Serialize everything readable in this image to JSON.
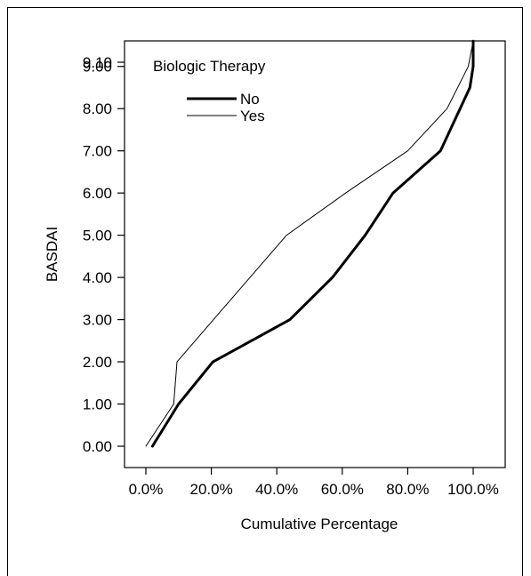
{
  "chart_data": {
    "type": "line",
    "title": "",
    "xlabel": "Cumulative Percentage",
    "ylabel": "BASDAI",
    "xlim": [
      0,
      100
    ],
    "ylim": [
      0,
      9.1
    ],
    "x_ticks": [
      "0.0%",
      "20.0%",
      "40.0%",
      "60.0%",
      "80.0%",
      "100.0%"
    ],
    "x_tick_values": [
      0,
      20,
      40,
      60,
      80,
      100
    ],
    "y_ticks": [
      "0.00",
      "1.00",
      "2.00",
      "3.00",
      "4.00",
      "5.00",
      "6.00",
      "7.00",
      "8.00",
      "9.00",
      "9.10"
    ],
    "y_tick_values": [
      0,
      1,
      2,
      3,
      4,
      5,
      6,
      7,
      8,
      9,
      9.1
    ],
    "legend": {
      "title": "Biologic Therapy",
      "position": "top-left"
    },
    "series": [
      {
        "name": "No",
        "style": "thick",
        "color": "#000000",
        "points": [
          [
            2,
            0
          ],
          [
            10,
            1
          ],
          [
            20.5,
            2
          ],
          [
            44,
            3
          ],
          [
            57,
            4
          ],
          [
            67,
            5
          ],
          [
            75.5,
            6
          ],
          [
            90,
            7
          ],
          [
            96,
            8
          ],
          [
            99,
            8.5
          ],
          [
            100,
            9
          ],
          [
            100,
            9.6
          ]
        ]
      },
      {
        "name": "Yes",
        "style": "thin",
        "color": "#000000",
        "points": [
          [
            0,
            0
          ],
          [
            8.5,
            1
          ],
          [
            9.5,
            2
          ],
          [
            24,
            3.3
          ],
          [
            43,
            5
          ],
          [
            61,
            6
          ],
          [
            80,
            7
          ],
          [
            92,
            8
          ],
          [
            98.5,
            9
          ],
          [
            100,
            9.6
          ]
        ]
      }
    ]
  }
}
